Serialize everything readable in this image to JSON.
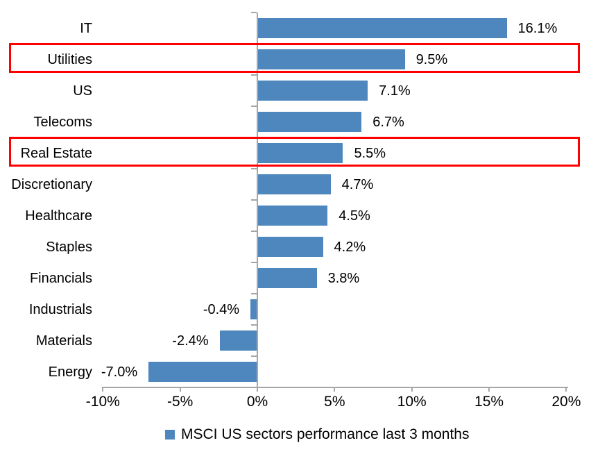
{
  "chart_data": {
    "type": "bar",
    "orientation": "horizontal",
    "title": "",
    "categories": [
      "IT",
      "Utilities",
      "US",
      "Telecoms",
      "Real Estate",
      "Discretionary",
      "Healthcare",
      "Staples",
      "Financials",
      "Industrials",
      "Materials",
      "Energy"
    ],
    "values": [
      16.1,
      9.5,
      7.1,
      6.7,
      5.5,
      4.7,
      4.5,
      4.2,
      3.8,
      -0.4,
      -2.4,
      -7.0
    ],
    "data_labels": [
      "16.1%",
      "9.5%",
      "7.1%",
      "6.7%",
      "5.5%",
      "4.7%",
      "4.5%",
      "4.2%",
      "3.8%",
      "-0.4%",
      "-2.4%",
      "-7.0%"
    ],
    "x_axis": {
      "min": -10,
      "max": 20,
      "tick_values": [
        -10,
        -5,
        0,
        5,
        10,
        15,
        20
      ],
      "tick_labels": [
        "-10%",
        "-5%",
        "0%",
        "5%",
        "10%",
        "15%",
        "20%"
      ]
    },
    "legend": {
      "label": "MSCI US sectors performance last 3 months",
      "position": "bottom"
    },
    "grid": "off",
    "highlighted_categories": [
      "Utilities",
      "Real Estate"
    ],
    "colors": {
      "bar": "#4e87bd",
      "axis": "#a6a6a6",
      "highlight_box": "#ff0000",
      "text": "#000000",
      "background": "#ffffff"
    }
  }
}
